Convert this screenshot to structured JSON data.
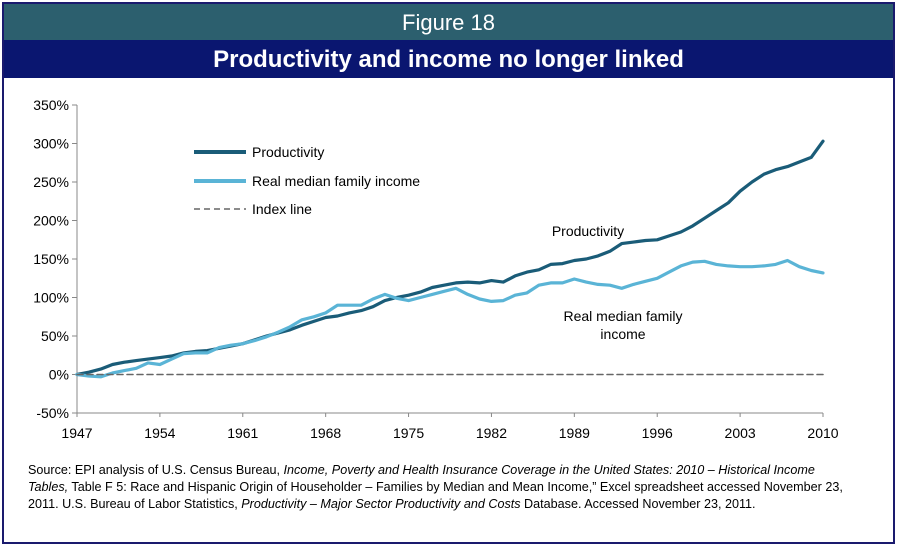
{
  "figure_label": "Figure 18",
  "chart_data": {
    "type": "line",
    "title": "Productivity and income no longer linked",
    "xlabel": "",
    "ylabel": "",
    "ylim": [
      -50,
      350
    ],
    "xlim": [
      1947,
      2010
    ],
    "yticks": [
      "350%",
      "300%",
      "250%",
      "200%",
      "150%",
      "100%",
      "50%",
      "0%",
      "-50%"
    ],
    "ytick_values": [
      350,
      300,
      250,
      200,
      150,
      100,
      50,
      0,
      -50
    ],
    "xticks": [
      "1947",
      "1954",
      "1961",
      "1968",
      "1975",
      "1982",
      "1989",
      "1996",
      "2003",
      "2010"
    ],
    "xtick_values": [
      1947,
      1954,
      1961,
      1968,
      1975,
      1982,
      1989,
      1996,
      2003,
      2010
    ],
    "legend_position": "top-left",
    "series": [
      {
        "name": "Productivity",
        "color": "#1a5c78",
        "years": [
          1947,
          1948,
          1949,
          1950,
          1951,
          1952,
          1953,
          1954,
          1955,
          1956,
          1957,
          1958,
          1959,
          1960,
          1961,
          1962,
          1963,
          1964,
          1965,
          1966,
          1967,
          1968,
          1969,
          1970,
          1971,
          1972,
          1973,
          1974,
          1975,
          1976,
          1977,
          1978,
          1979,
          1980,
          1981,
          1982,
          1983,
          1984,
          1985,
          1986,
          1987,
          1988,
          1989,
          1990,
          1991,
          1992,
          1993,
          1994,
          1995,
          1996,
          1997,
          1998,
          1999,
          2000,
          2001,
          2002,
          2003,
          2004,
          2005,
          2006,
          2007,
          2008,
          2009,
          2010
        ],
        "values": [
          0,
          3,
          7,
          13,
          16,
          18,
          20,
          22,
          24,
          28,
          30,
          31,
          34,
          37,
          40,
          45,
          50,
          54,
          58,
          64,
          69,
          74,
          76,
          80,
          83,
          88,
          96,
          100,
          103,
          107,
          113,
          116,
          119,
          120,
          119,
          122,
          120,
          128,
          133,
          136,
          143,
          144,
          148,
          150,
          154,
          160,
          170,
          172,
          174,
          175,
          180,
          185,
          193,
          203,
          213,
          223,
          238,
          250,
          260,
          266,
          270,
          276,
          282,
          303
        ],
        "label_annotation": "Productivity"
      },
      {
        "name": "Real median family income",
        "color": "#5ab4d6",
        "years": [
          1947,
          1948,
          1949,
          1950,
          1951,
          1952,
          1953,
          1954,
          1955,
          1956,
          1957,
          1958,
          1959,
          1960,
          1961,
          1962,
          1963,
          1964,
          1965,
          1966,
          1967,
          1968,
          1969,
          1970,
          1971,
          1972,
          1973,
          1974,
          1975,
          1976,
          1977,
          1978,
          1979,
          1980,
          1981,
          1982,
          1983,
          1984,
          1985,
          1986,
          1987,
          1988,
          1989,
          1990,
          1991,
          1992,
          1993,
          1994,
          1995,
          1996,
          1997,
          1998,
          1999,
          2000,
          2001,
          2002,
          2003,
          2004,
          2005,
          2006,
          2007,
          2008,
          2009,
          2010
        ],
        "values": [
          0,
          -2,
          -3,
          2,
          5,
          8,
          15,
          13,
          20,
          27,
          28,
          28,
          35,
          38,
          40,
          44,
          49,
          55,
          62,
          71,
          75,
          80,
          90,
          90,
          90,
          98,
          104,
          99,
          96,
          100,
          104,
          108,
          112,
          104,
          98,
          95,
          96,
          103,
          106,
          116,
          119,
          119,
          124,
          120,
          117,
          116,
          112,
          117,
          121,
          125,
          133,
          141,
          146,
          147,
          143,
          141,
          140,
          140,
          141,
          143,
          148,
          140,
          135,
          132
        ],
        "label_annotation": "Real median family income"
      },
      {
        "name": "Index line",
        "color": "#666666",
        "dashed": true,
        "years": [
          1947,
          2010
        ],
        "values": [
          0,
          0
        ]
      }
    ]
  },
  "source": {
    "part1": "Source: EPI analysis of U.S. Census Bureau, ",
    "italic1": "Income, Poverty and Health Insurance Coverage in the United States: 2010 – Historical Income Tables,",
    "part2": " Table F 5: Race and Hispanic Origin of Householder – Families by Median and Mean Income,” Excel spreadsheet accessed November 23, 2011. U.S. Bureau of Labor Statistics, ",
    "italic2": "Productivity – Major Sector Productivity and Costs",
    "part3": " Database.  Accessed November 23, 2011."
  }
}
